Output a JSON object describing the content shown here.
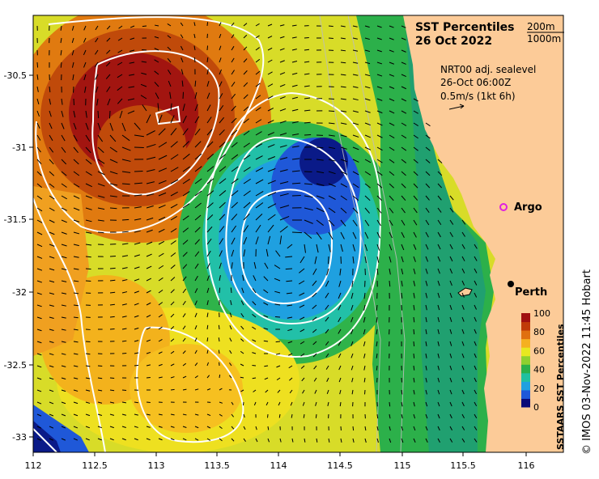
{
  "title": {
    "line1": "SST Percentiles",
    "line2": "26 Oct 2022"
  },
  "depth_legend": [
    "200m",
    "1000m"
  ],
  "info": {
    "line1": "NRT00 adj. sealevel",
    "line2": "26-Oct 06:00Z",
    "line3": "0.5m/s (1kt 6h)"
  },
  "places": [
    {
      "name": "Argo",
      "marker": "magenta-ring-icon",
      "color": "#e020e0"
    },
    {
      "name": "Perth",
      "marker": "black-dot-icon",
      "color": "#000000"
    }
  ],
  "colorbar": {
    "label": "SSTAARS SST Percentiles",
    "ticks": [
      "100",
      "80",
      "60",
      "40",
      "20",
      "0"
    ],
    "colors": [
      "#0a0a78",
      "#1f58d8",
      "#1fa0e0",
      "#20c0a0",
      "#2bb04a",
      "#8fd02f",
      "#e8e820",
      "#f5b020",
      "#e07010",
      "#c03a08",
      "#a01010"
    ]
  },
  "axes": {
    "x_ticks": [
      "112",
      "112.5",
      "113",
      "113.5",
      "114",
      "114.5",
      "115",
      "115.5",
      "116"
    ],
    "y_ticks": [
      "-30.5",
      "-31",
      "-31.5",
      "-32",
      "-32.5",
      "-33"
    ]
  },
  "credit": "© IMOS 03-Nov-2022 11:45 Hobart",
  "colors": {
    "land": "#fccb98",
    "contour": "#ffffff",
    "vector": "#000000"
  }
}
